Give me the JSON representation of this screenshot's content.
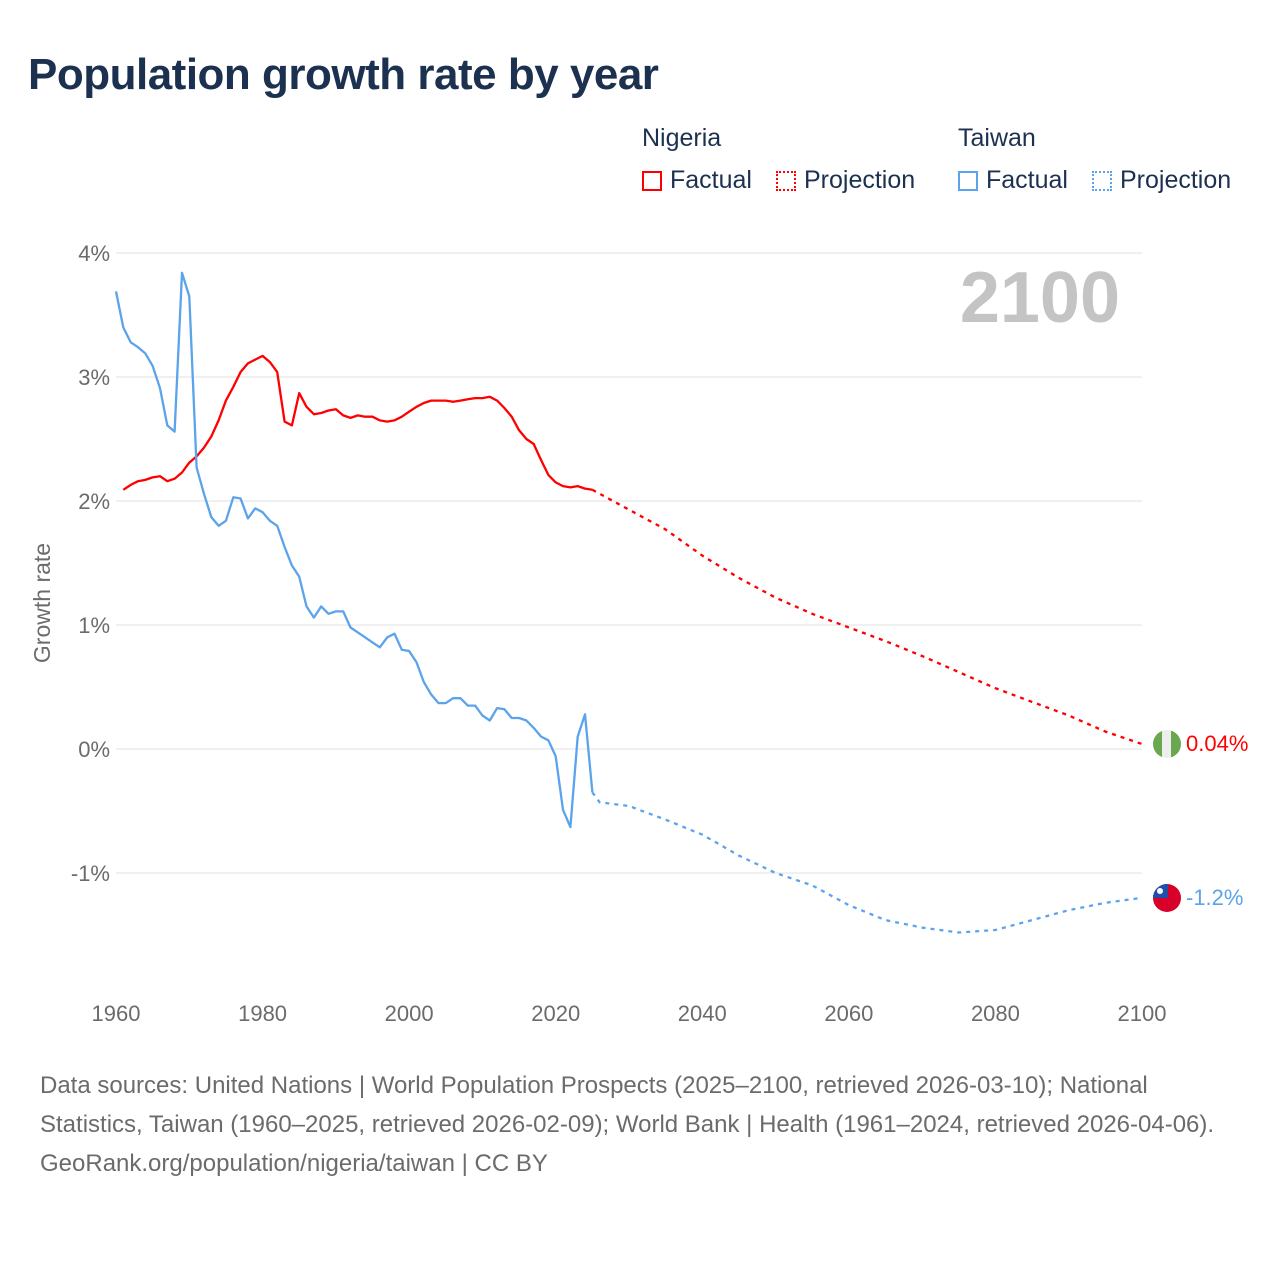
{
  "title": "Population growth rate by year",
  "legend": {
    "groups": [
      {
        "name": "Nigeria",
        "color": "#ff0000",
        "factual": "Factual",
        "projection": "Projection"
      },
      {
        "name": "Taiwan",
        "color": "#5ba3ea",
        "factual": "Factual",
        "projection": "Projection"
      }
    ]
  },
  "year_label": "2100",
  "end_labels": {
    "nigeria": "0.04%",
    "taiwan": "-1.2%"
  },
  "chart_data": {
    "type": "line",
    "title": "Population growth rate by year",
    "xlabel": "",
    "ylabel": "Growth rate",
    "xlim": [
      1960,
      2100
    ],
    "ylim": [
      -1.8,
      4.0
    ],
    "x_ticks": [
      1960,
      1980,
      2000,
      2020,
      2040,
      2060,
      2080,
      2100
    ],
    "x_tick_labels": [
      "1960",
      "1980",
      "2000",
      "2020",
      "2040",
      "2060",
      "2080",
      "2100"
    ],
    "y_ticks": [
      4,
      3,
      2,
      1,
      0,
      -1
    ],
    "y_tick_labels": [
      "4%",
      "3%",
      "2%",
      "1%",
      "0%",
      "-1%"
    ],
    "grid": true,
    "legend_position": "top-right",
    "series": [
      {
        "name": "Nigeria Factual",
        "color": "#ff0000",
        "style": "solid",
        "x": [
          1961,
          1962,
          1963,
          1964,
          1965,
          1966,
          1967,
          1968,
          1969,
          1970,
          1971,
          1972,
          1973,
          1974,
          1975,
          1976,
          1977,
          1978,
          1979,
          1980,
          1981,
          1982,
          1983,
          1984,
          1985,
          1986,
          1987,
          1988,
          1989,
          1990,
          1991,
          1992,
          1993,
          1994,
          1995,
          1996,
          1997,
          1998,
          1999,
          2000,
          2001,
          2002,
          2003,
          2004,
          2005,
          2006,
          2007,
          2008,
          2009,
          2010,
          2011,
          2012,
          2013,
          2014,
          2015,
          2016,
          2017,
          2018,
          2019,
          2020,
          2021,
          2022,
          2023,
          2024,
          2025
        ],
        "y": [
          2.09,
          2.13,
          2.16,
          2.17,
          2.19,
          2.2,
          2.16,
          2.18,
          2.23,
          2.31,
          2.36,
          2.43,
          2.52,
          2.65,
          2.81,
          2.92,
          3.04,
          3.11,
          3.14,
          3.17,
          3.12,
          3.04,
          2.64,
          2.61,
          2.87,
          2.76,
          2.7,
          2.71,
          2.73,
          2.74,
          2.69,
          2.67,
          2.69,
          2.68,
          2.68,
          2.65,
          2.64,
          2.65,
          2.68,
          2.72,
          2.76,
          2.79,
          2.81,
          2.81,
          2.81,
          2.8,
          2.81,
          2.82,
          2.83,
          2.83,
          2.84,
          2.81,
          2.75,
          2.68,
          2.57,
          2.5,
          2.46,
          2.33,
          2.21,
          2.15,
          2.12,
          2.11,
          2.12,
          2.1,
          2.09
        ]
      },
      {
        "name": "Nigeria Projection",
        "color": "#ff0000",
        "style": "dotted",
        "x": [
          2025,
          2030,
          2035,
          2040,
          2045,
          2050,
          2055,
          2060,
          2065,
          2070,
          2075,
          2080,
          2085,
          2090,
          2095,
          2100
        ],
        "y": [
          2.09,
          1.93,
          1.77,
          1.56,
          1.38,
          1.22,
          1.09,
          0.98,
          0.87,
          0.75,
          0.62,
          0.49,
          0.38,
          0.27,
          0.14,
          0.04
        ]
      },
      {
        "name": "Taiwan Factual",
        "color": "#5ba3ea",
        "style": "solid",
        "x": [
          1960,
          1961,
          1962,
          1963,
          1964,
          1965,
          1966,
          1967,
          1968,
          1969,
          1970,
          1971,
          1972,
          1973,
          1974,
          1975,
          1976,
          1977,
          1978,
          1979,
          1980,
          1981,
          1982,
          1983,
          1984,
          1985,
          1986,
          1987,
          1988,
          1989,
          1990,
          1991,
          1992,
          1993,
          1994,
          1995,
          1996,
          1997,
          1998,
          1999,
          2000,
          2001,
          2002,
          2003,
          2004,
          2005,
          2006,
          2007,
          2008,
          2009,
          2010,
          2011,
          2012,
          2013,
          2014,
          2015,
          2016,
          2017,
          2018,
          2019,
          2020,
          2021,
          2022,
          2023,
          2024,
          2025
        ],
        "y": [
          3.69,
          3.4,
          3.28,
          3.24,
          3.19,
          3.09,
          2.91,
          2.61,
          2.56,
          3.84,
          3.65,
          2.27,
          2.06,
          1.87,
          1.8,
          1.84,
          2.03,
          2.02,
          1.86,
          1.94,
          1.91,
          1.84,
          1.8,
          1.63,
          1.48,
          1.39,
          1.15,
          1.06,
          1.15,
          1.09,
          1.11,
          1.11,
          0.98,
          0.94,
          0.9,
          0.86,
          0.82,
          0.9,
          0.93,
          0.8,
          0.79,
          0.7,
          0.54,
          0.44,
          0.37,
          0.37,
          0.41,
          0.41,
          0.35,
          0.35,
          0.27,
          0.23,
          0.33,
          0.32,
          0.25,
          0.25,
          0.23,
          0.17,
          0.1,
          0.07,
          -0.06,
          -0.49,
          -0.63,
          0.1,
          0.28,
          -0.35
        ]
      },
      {
        "name": "Taiwan Projection",
        "color": "#5ba3ea",
        "style": "dotted",
        "x": [
          2025,
          2026,
          2030,
          2035,
          2040,
          2045,
          2050,
          2055,
          2060,
          2065,
          2070,
          2075,
          2080,
          2085,
          2090,
          2095,
          2100
        ],
        "y": [
          -0.35,
          -0.43,
          -0.46,
          -0.57,
          -0.69,
          -0.86,
          -1.0,
          -1.1,
          -1.26,
          -1.38,
          -1.44,
          -1.48,
          -1.46,
          -1.38,
          -1.3,
          -1.24,
          -1.2
        ]
      }
    ]
  },
  "footer": {
    "sources": "Data sources: United Nations | World Population Prospects (2025–2100, retrieved 2026-03-10); National Statistics, Taiwan (1960–2025, retrieved 2026-02-09); World Bank | Health (1961–2024, retrieved 2026-04-06).",
    "credit": "GeoRank.org/population/nigeria/taiwan | CC BY"
  }
}
